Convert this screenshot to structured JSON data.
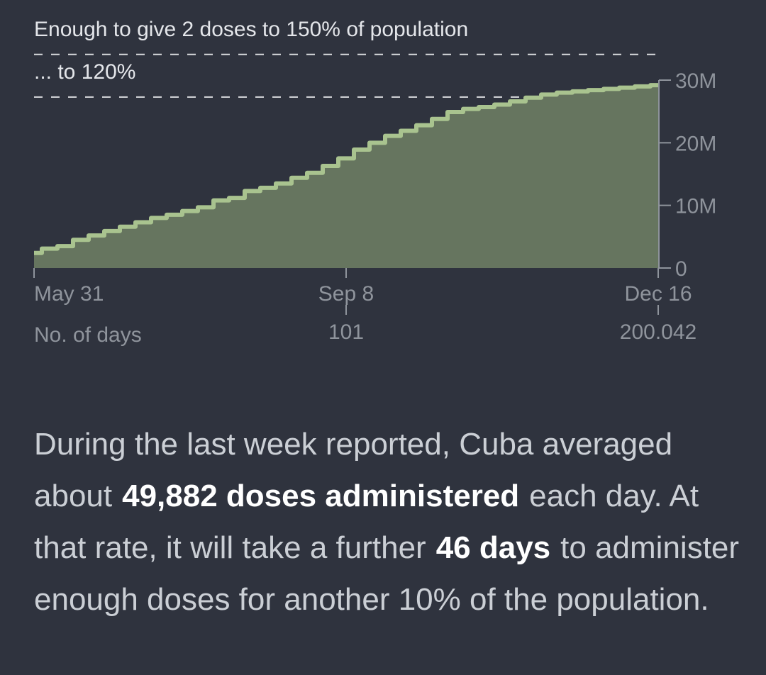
{
  "colors": {
    "background": "#2f333e",
    "area_fill": "#66755f",
    "area_line": "#a9c38f",
    "reference_line": "#d9dbde",
    "axis": "#8f949c",
    "text_emphasis": "#ffffff"
  },
  "chart_data": {
    "type": "area",
    "title": "",
    "xlabel": "No. of days",
    "ylabel": "",
    "x_ticks": [
      {
        "date": "May 31",
        "days": ""
      },
      {
        "date": "Sep 8",
        "days": "101"
      },
      {
        "date": "Dec 16",
        "days": "200.042"
      }
    ],
    "y_ticks": [
      {
        "label": "0",
        "value": 0
      },
      {
        "label": "10M",
        "value": 10000000
      },
      {
        "label": "20M",
        "value": 20000000
      },
      {
        "label": "30M",
        "value": 30000000
      }
    ],
    "ylim": [
      0,
      30000000
    ],
    "xlim": [
      0,
      200
    ],
    "reference_lines": [
      {
        "label": "Enough to give 2 doses to 150% of population",
        "value": 34100000
      },
      {
        "label": "... to 120%",
        "value": 27300000
      }
    ],
    "series": [
      {
        "name": "Doses administered",
        "x": [
          0,
          5,
          10,
          15,
          20,
          25,
          30,
          35,
          40,
          45,
          50,
          55,
          60,
          65,
          70,
          75,
          80,
          85,
          90,
          95,
          100,
          105,
          110,
          115,
          120,
          125,
          130,
          135,
          140,
          145,
          150,
          155,
          160,
          165,
          170,
          175,
          180,
          185,
          190,
          195,
          200
        ],
        "values": [
          2400000,
          3100000,
          3500000,
          4500000,
          5200000,
          5900000,
          6600000,
          7300000,
          8000000,
          8500000,
          9100000,
          9700000,
          10800000,
          11200000,
          12300000,
          12800000,
          13500000,
          14400000,
          15200000,
          16300000,
          17500000,
          18900000,
          20000000,
          21100000,
          21900000,
          22800000,
          23800000,
          24900000,
          25400000,
          25700000,
          26100000,
          26600000,
          27200000,
          27700000,
          28000000,
          28200000,
          28400000,
          28600000,
          28800000,
          29000000,
          29200000
        ]
      }
    ]
  },
  "summary": {
    "text_1": "During the last week reported, Cuba averaged about",
    "doses_per_day": "49,882 doses administered",
    "text_2": "each day. At that rate, it will take a further",
    "days_further": "46 days",
    "text_3": "to administer enough doses for another 10% of the population."
  }
}
